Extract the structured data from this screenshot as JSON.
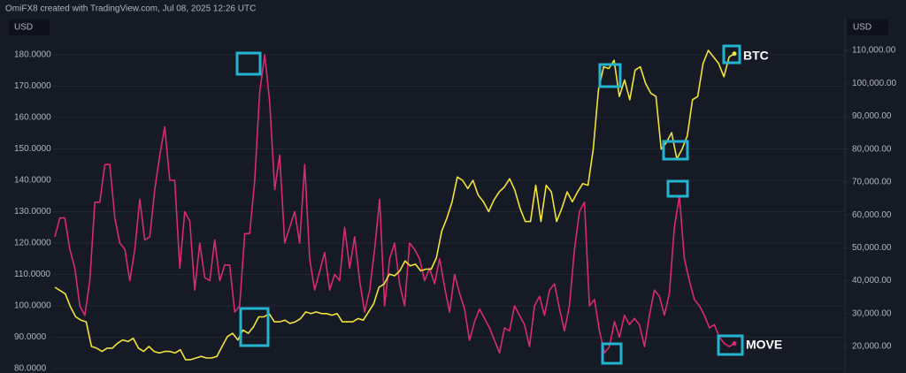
{
  "chart_data": {
    "type": "line",
    "title": "OmiFX8 created with TradingView.com, Jul 08, 2025 12:26 UTC",
    "y_label": "USD",
    "y2_label": "USD",
    "ylim": [
      78.6,
      191.8
    ],
    "yticks": [
      {
        "value": 80,
        "label": "80.0000"
      },
      {
        "value": 90,
        "label": "90.0000"
      },
      {
        "value": 100,
        "label": "100.0000"
      },
      {
        "value": 110,
        "label": "110.0000"
      },
      {
        "value": 120,
        "label": "120.0000"
      },
      {
        "value": 130,
        "label": "130.0000"
      },
      {
        "value": 140,
        "label": "140.0000"
      },
      {
        "value": 150,
        "label": "150.0000"
      },
      {
        "value": 160,
        "label": "160.0000"
      },
      {
        "value": 170,
        "label": "170.0000"
      },
      {
        "value": 180,
        "label": "180.0000"
      }
    ],
    "y2lim": [
      11940,
      119940
    ],
    "y2ticks": [
      {
        "value": 20000,
        "label": "20,000.00"
      },
      {
        "value": 30000,
        "label": "30,000.00"
      },
      {
        "value": 40000,
        "label": "40,000.00"
      },
      {
        "value": 50000,
        "label": "50,000.00"
      },
      {
        "value": 60000,
        "label": "60,000.00"
      },
      {
        "value": 70000,
        "label": "70,000.00"
      },
      {
        "value": 80000,
        "label": "80,000.00"
      },
      {
        "value": 90000,
        "label": "90,000.00"
      },
      {
        "value": 100000,
        "label": "100,000.00"
      },
      {
        "value": 110000,
        "label": "110,000.00"
      }
    ],
    "grid": true,
    "series": [
      {
        "name": "MOVE",
        "color": "#d62a72",
        "axis": "y",
        "values": [
          122,
          128,
          128,
          118,
          112,
          100,
          97,
          108,
          133,
          133,
          145,
          145,
          128,
          120,
          118,
          108,
          118,
          134,
          121,
          122,
          137,
          148,
          157,
          140,
          140,
          112,
          130,
          127,
          105,
          120,
          109,
          108,
          121,
          108,
          113,
          113,
          98,
          100,
          123,
          123,
          140,
          168,
          180,
          165,
          137,
          148,
          120,
          125,
          130,
          120,
          145,
          115,
          105,
          111,
          117,
          105,
          110,
          108,
          125,
          112,
          122,
          108,
          98,
          105,
          118,
          134,
          100,
          115,
          120,
          107,
          100,
          120,
          118,
          115,
          108,
          112,
          107,
          115,
          106,
          98,
          110,
          104,
          99,
          89,
          95,
          99,
          96,
          93,
          89,
          85,
          93,
          92,
          100,
          97,
          94,
          87,
          100,
          103,
          97,
          105,
          107,
          99,
          92,
          100,
          118,
          130,
          133,
          100,
          102,
          92,
          85,
          87,
          95,
          90,
          97,
          94,
          96,
          94,
          87,
          97,
          105,
          103,
          97,
          104,
          125,
          135,
          115,
          108,
          102,
          100,
          97,
          93,
          94,
          90,
          88,
          87,
          88
        ]
      },
      {
        "name": "BTC",
        "color": "#f2e23c",
        "axis": "y2",
        "values": [
          38000,
          37000,
          36000,
          32000,
          29000,
          28000,
          27500,
          20000,
          19500,
          18500,
          19500,
          19500,
          21000,
          22000,
          21500,
          22500,
          19500,
          18500,
          20000,
          18500,
          18000,
          18500,
          18500,
          18000,
          19000,
          16000,
          16000,
          16500,
          17000,
          16500,
          16500,
          17000,
          20000,
          23000,
          24000,
          22000,
          25000,
          24000,
          26000,
          29000,
          29000,
          30000,
          27500,
          27500,
          28000,
          27000,
          27500,
          28500,
          30500,
          30000,
          30500,
          30000,
          30000,
          29500,
          30000,
          27500,
          27500,
          27500,
          28500,
          28000,
          30500,
          33000,
          38000,
          39000,
          42000,
          41500,
          43000,
          46000,
          44500,
          45000,
          43000,
          43500,
          43500,
          47000,
          55000,
          59000,
          64000,
          71500,
          70500,
          68000,
          70500,
          66000,
          64000,
          61000,
          64500,
          67000,
          68500,
          71000,
          67500,
          62000,
          58000,
          58000,
          69000,
          58000,
          69000,
          67000,
          58000,
          62000,
          67000,
          64000,
          67000,
          69500,
          69000,
          80000,
          98000,
          105000,
          104500,
          107000,
          96000,
          101000,
          95000,
          104000,
          105000,
          100000,
          97000,
          96000,
          80000,
          82000,
          85000,
          77000,
          80000,
          84000,
          95000,
          96000,
          106000,
          110000,
          108000,
          106000,
          102000,
          108000,
          109000
        ]
      }
    ],
    "annotations": [
      {
        "text": "BTC"
      },
      {
        "text": "MOVE"
      }
    ]
  }
}
